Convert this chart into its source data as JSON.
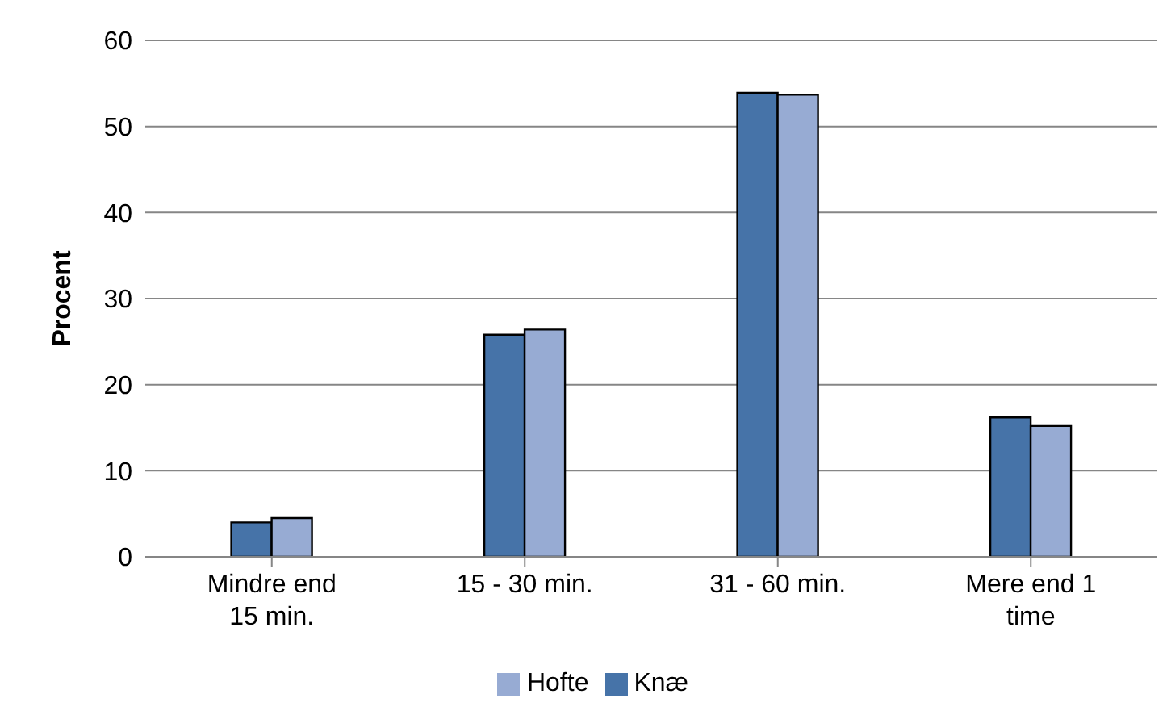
{
  "chart_data": {
    "type": "bar",
    "ylabel": "Procent",
    "categories": [
      "Mindre end 15 min.",
      "15 - 30 min.",
      "31 - 60 min.",
      "Mere end 1 time"
    ],
    "series": [
      {
        "name": "Knæ",
        "color": "#4673a8",
        "values": [
          4.0,
          25.8,
          53.9,
          16.2
        ]
      },
      {
        "name": "Hofte",
        "color": "#97abd3",
        "values": [
          4.5,
          26.4,
          53.7,
          15.2
        ]
      }
    ],
    "ylim": [
      0,
      60
    ],
    "yticks": [
      0,
      10,
      20,
      30,
      40,
      50,
      60
    ],
    "grid": "y",
    "legend": "bottom"
  }
}
